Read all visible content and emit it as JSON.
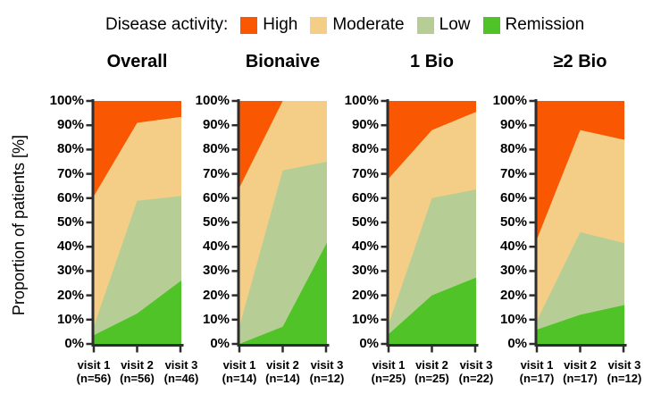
{
  "figure": {
    "legend": {
      "label": "Disease activity:",
      "items": [
        {
          "name": "High",
          "color": "#F95702"
        },
        {
          "name": "Moderate",
          "color": "#F4CE87"
        },
        {
          "name": "Low",
          "color": "#B6CE95"
        },
        {
          "name": "Remission",
          "color": "#4FC327"
        }
      ]
    },
    "y_axis_label": "Proportion of patients [%]",
    "axis_color": "#2d2d2d"
  },
  "chart_data": {
    "type": "area",
    "stacked": true,
    "unit": "percent of patients",
    "ylim": [
      0,
      100
    ],
    "y_ticks": [
      "100%",
      "90%",
      "80%",
      "70%",
      "60%",
      "50%",
      "40%",
      "30%",
      "20%",
      "10%",
      "0%"
    ],
    "grid": false,
    "legend_position": "top",
    "stack_order_bottom_to_top": [
      "Remission",
      "Low",
      "Moderate",
      "High"
    ],
    "colors": {
      "High": "#F95702",
      "Moderate": "#F4CE87",
      "Low": "#B6CE95",
      "Remission": "#4FC327"
    },
    "panels": [
      {
        "title": "Overall",
        "x_labels": [
          {
            "visit": "visit 1",
            "n": "(n=56)"
          },
          {
            "visit": "visit 2",
            "n": "(n=56)"
          },
          {
            "visit": "visit 3",
            "n": "(n=46)"
          }
        ],
        "series": [
          {
            "name": "Remission",
            "values": [
              3.6,
              12.5,
              26.1
            ]
          },
          {
            "name": "Low",
            "values": [
              3.6,
              46.4,
              34.8
            ]
          },
          {
            "name": "Moderate",
            "values": [
              53.6,
              32.1,
              32.6
            ]
          },
          {
            "name": "High",
            "values": [
              39.2,
              9.0,
              6.5
            ]
          }
        ]
      },
      {
        "title": "Bionaive",
        "x_labels": [
          {
            "visit": "visit 1",
            "n": "(n=14)"
          },
          {
            "visit": "visit 2",
            "n": "(n=14)"
          },
          {
            "visit": "visit 3",
            "n": "(n=12)"
          }
        ],
        "series": [
          {
            "name": "Remission",
            "values": [
              0,
              7.1,
              41.7
            ]
          },
          {
            "name": "Low",
            "values": [
              7.1,
              64.3,
              33.3
            ]
          },
          {
            "name": "Moderate",
            "values": [
              57.2,
              28.6,
              25.0
            ]
          },
          {
            "name": "High",
            "values": [
              35.7,
              0,
              0
            ]
          }
        ]
      },
      {
        "title": "1 Bio",
        "x_labels": [
          {
            "visit": "visit 1",
            "n": "(n=25)"
          },
          {
            "visit": "visit 2",
            "n": "(n=25)"
          },
          {
            "visit": "visit 3",
            "n": "(n=22)"
          }
        ],
        "series": [
          {
            "name": "Remission",
            "values": [
              4.0,
              20.0,
              27.3
            ]
          },
          {
            "name": "Low",
            "values": [
              4.0,
              40.0,
              36.3
            ]
          },
          {
            "name": "Moderate",
            "values": [
              60.0,
              28.0,
              31.9
            ]
          },
          {
            "name": "High",
            "values": [
              32.0,
              12.0,
              4.5
            ]
          }
        ]
      },
      {
        "title": "≥2 Bio",
        "x_labels": [
          {
            "visit": "visit 1",
            "n": "(n=17)"
          },
          {
            "visit": "visit 2",
            "n": "(n=17)"
          },
          {
            "visit": "visit 3",
            "n": "(n=12)"
          }
        ],
        "series": [
          {
            "name": "Remission",
            "values": [
              5.9,
              12.0,
              16.0
            ]
          },
          {
            "name": "Low",
            "values": [
              3.6,
              34.0,
              25.5
            ]
          },
          {
            "name": "Moderate",
            "values": [
              33.5,
              42.0,
              42.5
            ]
          },
          {
            "name": "High",
            "values": [
              57.0,
              12.0,
              16.0
            ]
          }
        ]
      }
    ]
  }
}
